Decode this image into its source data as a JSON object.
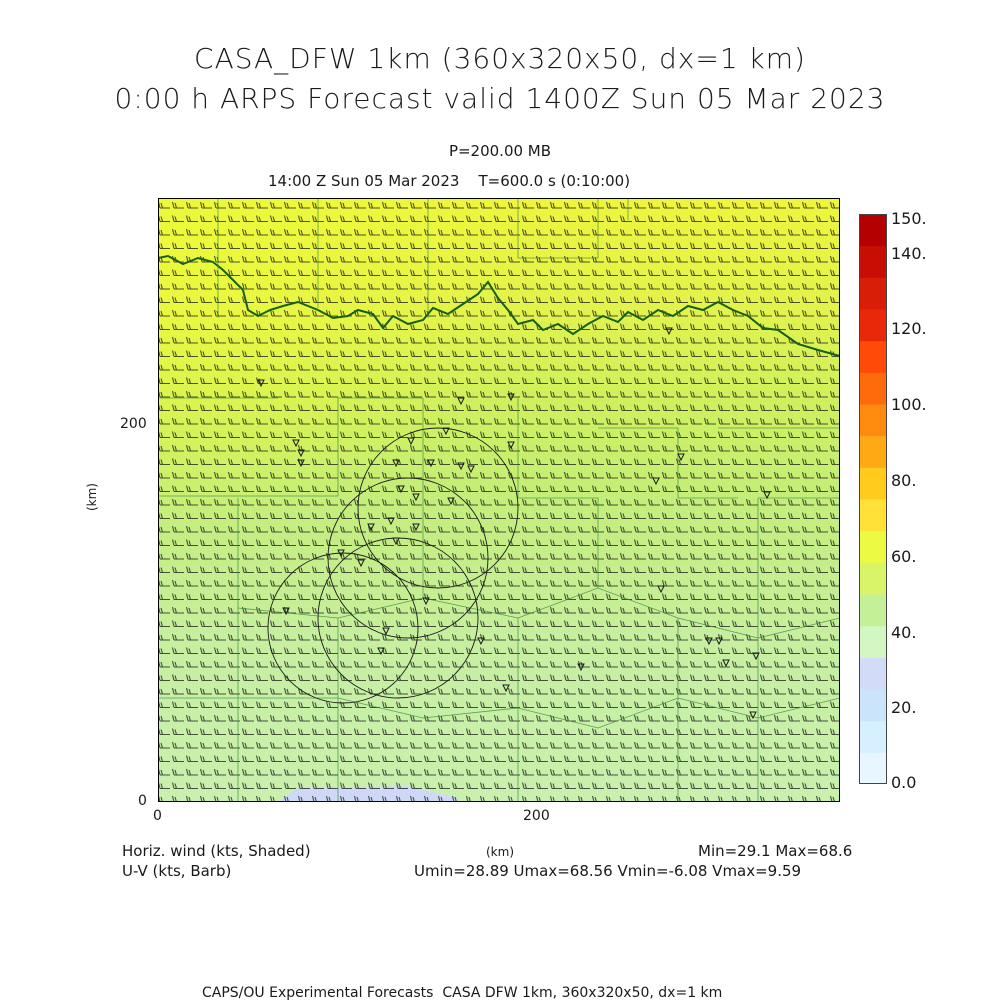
{
  "titles": {
    "line1": "CASA_DFW 1km (360x320x50, dx=1 km)",
    "line2": "0:00 h ARPS Forecast valid 1400Z Sun 05 Mar 2023",
    "level": "P=200.00 MB",
    "valid_time": "14:00 Z Sun 05 Mar 2023    T=600.0 s (0:10:00)"
  },
  "axes": {
    "x_ticks": [
      "0",
      "200"
    ],
    "y_ticks": [
      "0",
      "200"
    ],
    "x_unit": "(km)",
    "y_unit": "(km)",
    "x_range_km": [
      0,
      360
    ],
    "y_range_km": [
      0,
      320
    ]
  },
  "colorbar": {
    "labels": [
      "150.",
      "140.",
      "120.",
      "100.",
      "80.",
      "60.",
      "40.",
      "20.",
      "0.0"
    ],
    "colors": [
      "#e8f7ff",
      "#d6f0ff",
      "#c9e4fb",
      "#d2dcf8",
      "#d3f7c2",
      "#c4f098",
      "#daf46a",
      "#ecfa44",
      "#ffe138",
      "#ffcc1e",
      "#ffaa14",
      "#ff8a0e",
      "#ff6a0a",
      "#ff4a08",
      "#e82808",
      "#d81e06",
      "#c80e04",
      "#b40000"
    ]
  },
  "legend": {
    "shaded_field": "Horiz. wind (kts, Shaded)",
    "barb_field": "U-V (kts, Barb)",
    "unit": "(km)",
    "minmax": "Min=29.1 Max=68.6",
    "uv_stats": "Umin=28.89 Umax=68.56 Vmin=-6.08 Vmax=9.59"
  },
  "footer": "CAPS/OU Experimental Forecasts  CASA DFW 1km, 360x320x50, dx=1 km"
}
